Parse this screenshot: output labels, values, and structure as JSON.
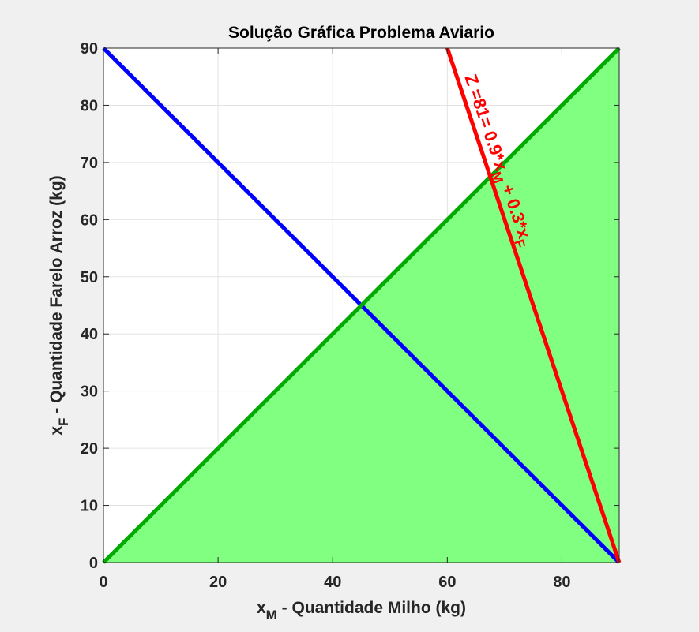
{
  "chart_data": {
    "type": "line",
    "title": "Solução Gráfica Problema Aviario",
    "xlabel": {
      "main": "x",
      "sub": "M",
      "rest": " - Quantidade Milho (kg)"
    },
    "ylabel": {
      "main": "x",
      "sub": "F",
      "rest": " - Quantidade Farelo Arroz (kg)"
    },
    "xlim": [
      0,
      90
    ],
    "ylim": [
      0,
      90
    ],
    "xticks": [
      0,
      20,
      40,
      60,
      80
    ],
    "yticks": [
      0,
      10,
      20,
      30,
      40,
      50,
      60,
      70,
      80,
      90
    ],
    "grid": true,
    "feasible_region": {
      "color": "#80ff80",
      "vertices": [
        [
          0,
          0
        ],
        [
          90,
          90
        ],
        [
          90,
          0
        ]
      ]
    },
    "series": [
      {
        "color": "#0000ff",
        "x": [
          0,
          90
        ],
        "y": [
          90,
          0
        ]
      },
      {
        "color": "#00aa00",
        "x": [
          0,
          90
        ],
        "y": [
          0,
          90
        ]
      },
      {
        "color": "#ff0000",
        "x": [
          60,
          90
        ],
        "y": [
          90,
          0
        ]
      }
    ],
    "annotations": [
      {
        "color": "#ff0000",
        "parts": [
          {
            "t": "Z =81= 0.9*x"
          },
          {
            "t": "M",
            "sub": true
          },
          {
            "t": " + 0.3*x"
          },
          {
            "t": "F",
            "sub": true
          }
        ],
        "x": 63,
        "y": 85,
        "angle_deg": 71.4
      }
    ]
  }
}
